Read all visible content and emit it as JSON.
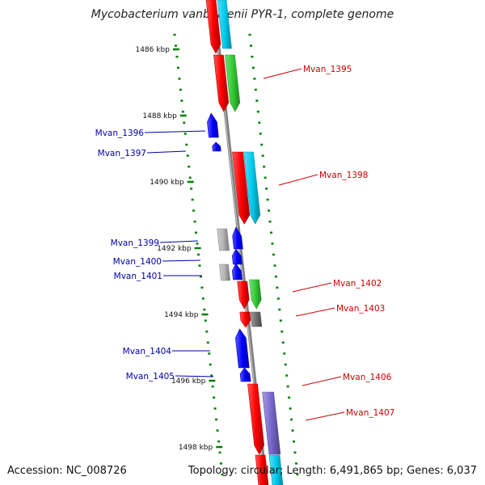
{
  "title": "Mycobacterium vanbaalenii PYR-1, complete genome",
  "footer": {
    "accession": "Accession: NC_008726",
    "summary": "Topology: circular; Length: 6,491,865 bp; Genes: 6,037"
  },
  "colors": {
    "backbone": "#808080",
    "tick": "#008000",
    "label_forward": "#cc0000",
    "label_reverse": "#0000aa",
    "red": "#ff0000",
    "green": "#33cc33",
    "cyan": "#00ccee",
    "grey": "#b4b4b4",
    "darkgrey": "#707070",
    "blue": "#0000ff",
    "purple": "#7766cc"
  },
  "scale_labels": [
    "1486 kbp",
    "1488 kbp",
    "1490 kbp",
    "1492 kbp",
    "1494 kbp",
    "1496 kbp",
    "1498 kbp"
  ],
  "gene_labels": [
    {
      "text": "Mvan_1395",
      "strand": "forward"
    },
    {
      "text": "Mvan_1396",
      "strand": "reverse"
    },
    {
      "text": "Mvan_1397",
      "strand": "reverse"
    },
    {
      "text": "Mvan_1398",
      "strand": "forward"
    },
    {
      "text": "Mvan_1399",
      "strand": "reverse"
    },
    {
      "text": "Mvan_1400",
      "strand": "reverse"
    },
    {
      "text": "Mvan_1401",
      "strand": "reverse"
    },
    {
      "text": "Mvan_1402",
      "strand": "forward"
    },
    {
      "text": "Mvan_1403",
      "strand": "forward"
    },
    {
      "text": "Mvan_1404",
      "strand": "reverse"
    },
    {
      "text": "Mvan_1405",
      "strand": "reverse"
    },
    {
      "text": "Mvan_1406",
      "strand": "forward"
    },
    {
      "text": "Mvan_1407",
      "strand": "forward"
    }
  ]
}
